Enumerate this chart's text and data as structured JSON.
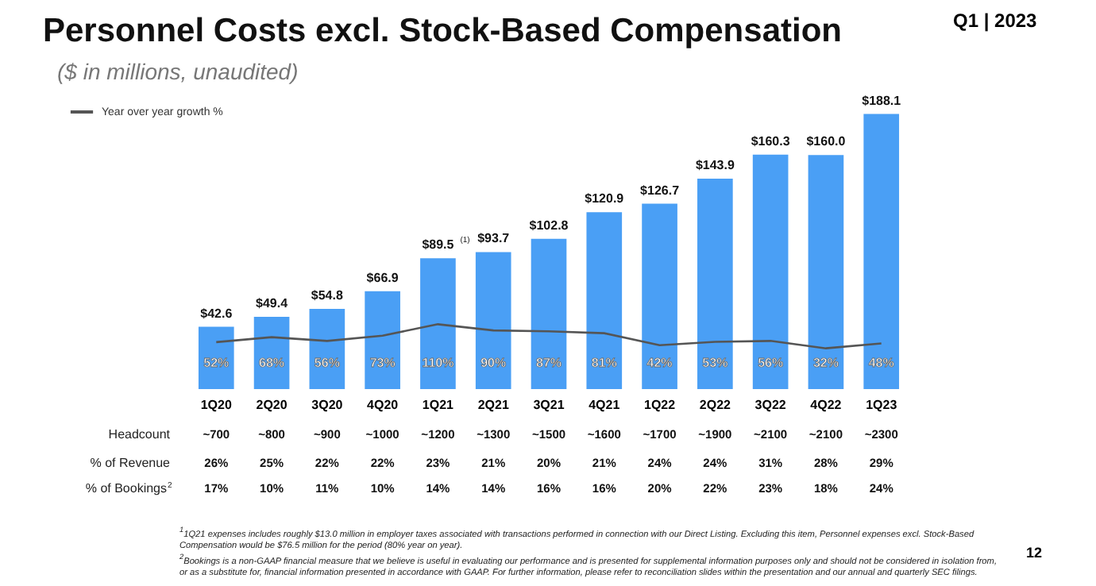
{
  "chart_data": {
    "type": "bar",
    "title": "Personnel Costs excl. Stock-Based Compensation",
    "subtitle": "($ in millions, unaudited)",
    "categories": [
      "1Q20",
      "2Q20",
      "3Q20",
      "4Q20",
      "1Q21",
      "2Q21",
      "3Q21",
      "4Q21",
      "1Q22",
      "2Q22",
      "3Q22",
      "4Q22",
      "1Q23"
    ],
    "ylim": [
      0,
      190
    ],
    "y2lim": [
      -100,
      800
    ],
    "legend": "top left",
    "series": [
      {
        "color": "#4a9ff5",
        "values": [
          42.6,
          49.4,
          54.8,
          66.9,
          89.5,
          93.7,
          102.8,
          120.9,
          126.7,
          143.9,
          160.3,
          160.0,
          188.1
        ],
        "value_labels": [
          "$42.6",
          "$49.4",
          "$54.8",
          "$66.9",
          "$89.5 $^{(1)}$",
          "$93.7",
          "$102.8",
          "$120.9",
          "$126.7",
          "$143.9",
          "$160.3",
          "$160.0",
          "$188.1"
        ]
      },
      {
        "type": "line",
        "axis": "y2",
        "name": "Year over year growth %",
        "color": "#555555",
        "values": [
          52,
          68,
          56,
          73,
          110,
          90,
          87,
          81,
          42,
          53,
          56,
          32,
          48
        ],
        "value_labels": [
          "52%",
          "68%",
          "56%",
          "73%",
          "110%",
          "90%",
          "87%",
          "81%",
          "42%",
          "53%",
          "56%",
          "32%",
          "48%"
        ]
      },
      {
        "type": "other",
        "name": "Headcount",
        "values": [
          null,
          null,
          null,
          null,
          null,
          null,
          null,
          null,
          null,
          null,
          null,
          null,
          null
        ],
        "value_labels": [
          "~700",
          "~800",
          "~900",
          "~1000",
          "~1200",
          "~1300",
          "~1500",
          "~1600",
          "~1700",
          "~1900",
          "~2100",
          "~2100",
          "~2300"
        ]
      },
      {
        "type": "other",
        "name": "% of Revenue",
        "values": [
          null,
          null,
          null,
          null,
          null,
          null,
          null,
          null,
          null,
          null,
          null,
          null,
          null
        ],
        "value_labels": [
          "26%",
          "25%",
          "22%",
          "22%",
          "23%",
          "21%",
          "20%",
          "21%",
          "24%",
          "24%",
          "31%",
          "28%",
          "29%"
        ]
      },
      {
        "type": "other",
        "name": "% of Bookings$^{2}$",
        "values": [
          null,
          null,
          null,
          null,
          null,
          null,
          null,
          null,
          null,
          null,
          null,
          null,
          null
        ],
        "value_labels": [
          "17%",
          "10%",
          "11%",
          "10%",
          "14%",
          "14%",
          "16%",
          "16%",
          "20%",
          "22%",
          "23%",
          "18%",
          "24%"
        ]
      }
    ],
    "annotations": [
      "Q1 | 2023",
      "12",
      "$^{1}$1Q21 expenses includes roughly $13.0 million in employer taxes associated with transactions performed in connection with our Direct Listing. Excluding this item, Personnel expenses excl. Stock-Based Compensation would be $76.5 million for the period (80% year on year).",
      "$^{2}$Bookings is a non-GAAP financial measure that we believe is useful in evaluating our performance and is presented for supplemental information purposes only and should not be considered in isolation from, or as a substitute for, financial information presented in accordance with GAAP. For further information, please refer to reconciliation slides within the presentation and our annual and quarterly SEC filings."
    ]
  }
}
